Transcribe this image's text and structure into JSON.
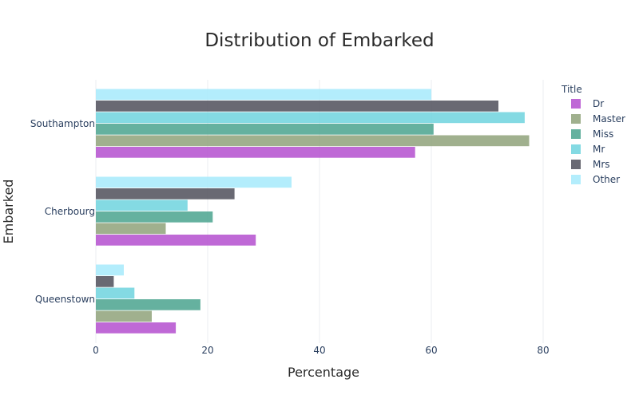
{
  "chart_data": {
    "type": "bar",
    "orientation": "horizontal",
    "title": "Distribution of Embarked",
    "xlabel": "Percentage",
    "ylabel": "Embarked",
    "xlim": [
      0,
      92
    ],
    "xticks": [
      0,
      20,
      40,
      60,
      80
    ],
    "grid": true,
    "categories": [
      "Southampton",
      "Cherbourg",
      "Queenstown"
    ],
    "legend": {
      "title": "Title",
      "position": "top-right"
    },
    "series": [
      {
        "name": "Dr",
        "color": "#b44fcf",
        "values": [
          57.1,
          28.6,
          14.3
        ]
      },
      {
        "name": "Master",
        "color": "#8fa27a",
        "values": [
          77.5,
          12.5,
          10.0
        ]
      },
      {
        "name": "Miss",
        "color": "#4aa38e",
        "values": [
          60.4,
          20.9,
          18.7
        ]
      },
      {
        "name": "Mr",
        "color": "#6fd3de",
        "values": [
          76.7,
          16.4,
          6.9
        ]
      },
      {
        "name": "Mrs",
        "color": "#4f4f5b",
        "values": [
          72.0,
          24.8,
          3.2
        ]
      },
      {
        "name": "Other",
        "color": "#a6eafc",
        "values": [
          60.0,
          35.0,
          5.0
        ]
      }
    ]
  }
}
